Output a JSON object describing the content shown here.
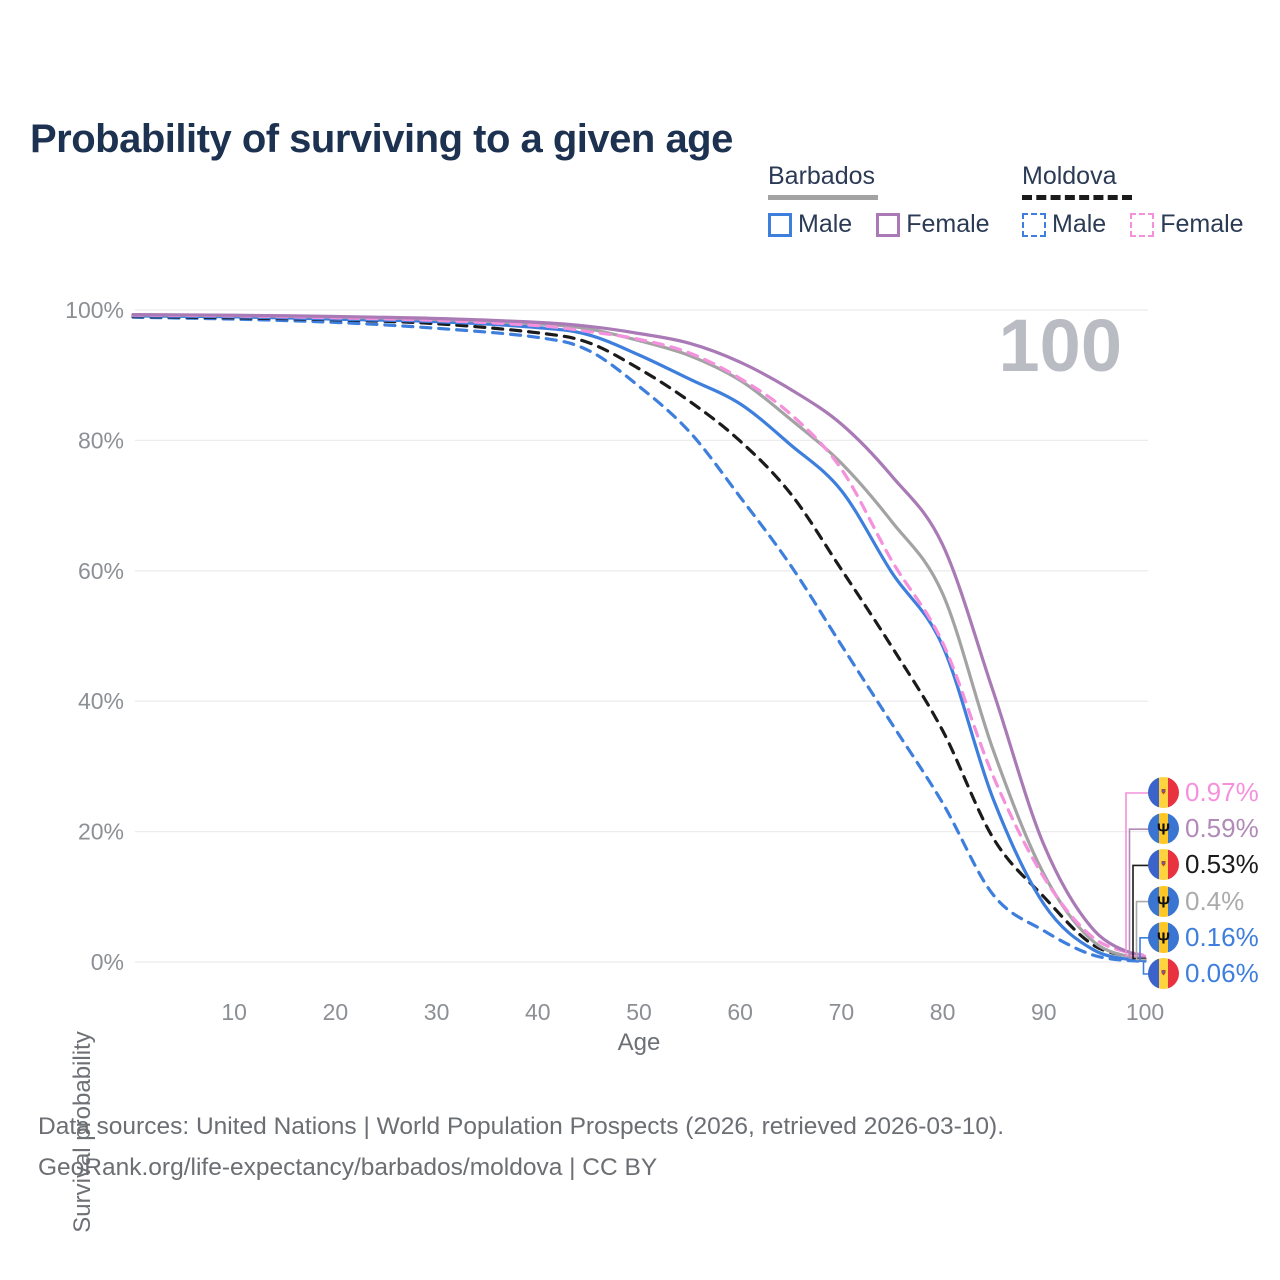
{
  "title": "Probability of surviving to a given age",
  "legend": {
    "groups": [
      {
        "title": "Barbados",
        "underline_style": "solid",
        "underline_color": "#a3a3a3",
        "items": [
          {
            "label": "Male",
            "color": "#3e7fdd",
            "dashed": false
          },
          {
            "label": "Female",
            "color": "#a97ab5",
            "dashed": false
          }
        ]
      },
      {
        "title": "Moldova",
        "underline_style": "dashed",
        "underline_color": "#1b1b1b",
        "items": [
          {
            "label": "Male",
            "color": "#3e7fdd",
            "dashed": true
          },
          {
            "label": "Female",
            "color": "#f590dc",
            "dashed": true
          }
        ]
      }
    ]
  },
  "chart_data": {
    "type": "line",
    "title": "Probability of surviving to a given age",
    "xlabel": "Age",
    "ylabel": "Survival probability",
    "watermark": "100",
    "xlim": [
      0,
      100
    ],
    "ylim": [
      0,
      100
    ],
    "grid": "horizontal",
    "x_ticks": [
      "10",
      "20",
      "30",
      "40",
      "50",
      "60",
      "70",
      "80",
      "90",
      "100"
    ],
    "x_tick_values": [
      10,
      20,
      30,
      40,
      50,
      60,
      70,
      80,
      90,
      100
    ],
    "y_ticks": [
      "0%",
      "20%",
      "40%",
      "60%",
      "80%",
      "100%"
    ],
    "y_tick_values": [
      0,
      20,
      40,
      60,
      80,
      100
    ],
    "ages": [
      0,
      10,
      20,
      30,
      40,
      45,
      50,
      55,
      60,
      65,
      70,
      75,
      80,
      85,
      90,
      95,
      100
    ],
    "series": [
      {
        "name": "Moldova Male",
        "country": "moldova",
        "sex": "male",
        "color": "#3e7fdd",
        "dashed": true,
        "values": [
          98.9,
          98.6,
          98.1,
          97.2,
          95.8,
          93.8,
          88.3,
          81.3,
          71.3,
          60.8,
          48.6,
          36.5,
          24.4,
          10.3,
          4.8,
          1.0,
          0.06
        ]
      },
      {
        "name": "Moldova Both sexes",
        "country": "moldova",
        "sex": "both",
        "color": "#1b1b1b",
        "dashed": true,
        "values": [
          99.0,
          98.8,
          98.5,
          97.9,
          96.5,
          95.0,
          91.0,
          86.0,
          79.9,
          71.8,
          60.2,
          48.3,
          35.5,
          19.0,
          10.0,
          2.5,
          0.53
        ]
      },
      {
        "name": "Barbados Male",
        "country": "barbados",
        "sex": "male",
        "color": "#3e7fdd",
        "dashed": false,
        "values": [
          99.1,
          98.95,
          98.6,
          98.2,
          97.3,
          96.2,
          93.1,
          89.4,
          85.6,
          79.3,
          72.3,
          59.7,
          48.5,
          25.0,
          8.9,
          1.8,
          0.16
        ]
      },
      {
        "name": "Barbados Both sexes",
        "country": "barbados",
        "sex": "both",
        "color": "#a3a3a3",
        "dashed": false,
        "values": [
          99.25,
          99.15,
          98.9,
          98.55,
          97.85,
          97.1,
          95.3,
          93.0,
          89.2,
          83.2,
          76.5,
          67.5,
          56.5,
          32.5,
          13.5,
          3.0,
          0.4
        ]
      },
      {
        "name": "Moldova Female",
        "country": "moldova",
        "sex": "female",
        "color": "#f590dc",
        "dashed": true,
        "values": [
          99.2,
          99.1,
          98.8,
          98.4,
          97.6,
          96.7,
          95.5,
          93.4,
          89.5,
          84.0,
          75.6,
          61.5,
          49.0,
          28.5,
          13.0,
          3.6,
          0.97
        ]
      },
      {
        "name": "Barbados Female",
        "country": "barbados",
        "sex": "female",
        "color": "#a97ab5",
        "dashed": false,
        "values": [
          99.3,
          99.2,
          99.0,
          98.7,
          98.1,
          97.5,
          96.4,
          94.9,
          92.0,
          87.8,
          82.5,
          74.5,
          64.0,
          41.5,
          18.0,
          4.8,
          0.59
        ]
      }
    ],
    "end_labels": [
      {
        "text": "0.97%",
        "value": 0.97,
        "color": "#f590dc",
        "country": "moldova",
        "series": "Moldova Female"
      },
      {
        "text": "0.59%",
        "value": 0.59,
        "color": "#b18ab8",
        "country": "barbados",
        "series": "Barbados Female"
      },
      {
        "text": "0.53%",
        "value": 0.53,
        "color": "#1b1b1b",
        "country": "moldova",
        "series": "Moldova Both sexes"
      },
      {
        "text": "0.4%",
        "value": 0.4,
        "color": "#ababab",
        "country": "barbados",
        "series": "Barbados Both sexes"
      },
      {
        "text": "0.16%",
        "value": 0.16,
        "color": "#3e7fdd",
        "country": "barbados",
        "series": "Barbados Male"
      },
      {
        "text": "0.06%",
        "value": 0.06,
        "color": "#3e7fdd",
        "country": "moldova",
        "series": "Moldova Male"
      }
    ]
  },
  "footer": {
    "line1": "Data sources: United Nations | World Population Prospects (2026, retrieved 2026-03-10).",
    "line2": "GeoRank.org/life-expectancy/barbados/moldova | CC BY"
  }
}
